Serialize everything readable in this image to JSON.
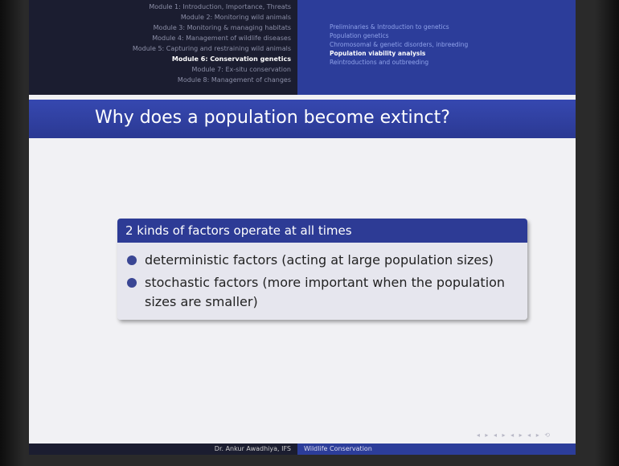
{
  "header": {
    "modules": [
      "Module 1: Introduction, Importance, Threats",
      "Module 2: Monitoring wild animals",
      "Module 3: Monitoring & managing habitats",
      "Module 4: Management of wildlife diseases",
      "Module 5: Capturing and restraining wild animals",
      "Module 6: Conservation genetics",
      "Module 7: Ex-situ conservation",
      "Module 8: Management of changes"
    ],
    "sections": [
      "Preliminaries & Introduction to genetics",
      "Population genetics",
      "Chromosomal & genetic disorders, inbreeding",
      "Population viability analysis",
      "Reintroductions and outbreeding"
    ]
  },
  "slide": {
    "title": "Why does a population become extinct?",
    "block": {
      "title": "2 kinds of factors operate at all times",
      "items": [
        "deterministic factors (acting at large population sizes)",
        "stochastic factors (more important when the population sizes are smaller)"
      ]
    }
  },
  "footer": {
    "author": "Dr. Ankur Awadhiya, IFS",
    "course": "Wildlife Conservation"
  }
}
